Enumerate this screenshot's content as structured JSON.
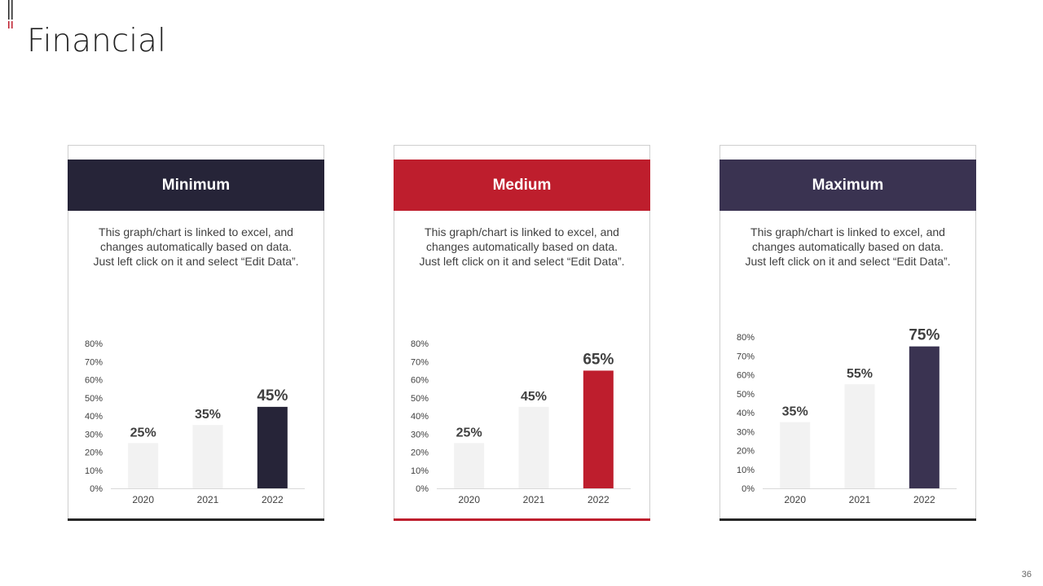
{
  "page": {
    "title": "Financial",
    "page_number": "36"
  },
  "colors": {
    "minimum": "#262438",
    "medium": "#BE1E2D",
    "maximum": "#3A3351",
    "light_bar": "#F2F2F2"
  },
  "cards": [
    {
      "header": "Minimum",
      "description": "This graph/chart is linked to excel, and changes automatically based on data. Just left click on it and select “Edit Data”."
    },
    {
      "header": "Medium",
      "description": "This graph/chart is linked to excel, and changes automatically based on data. Just left click on it and select “Edit Data”."
    },
    {
      "header": "Maximum",
      "description": "This graph/chart is linked to excel, and changes automatically based on data. Just left click on it and select “Edit Data”."
    }
  ],
  "chart_data": [
    {
      "type": "bar",
      "categories": [
        "2020",
        "2021",
        "2022"
      ],
      "values": [
        25,
        35,
        45
      ],
      "data_labels": [
        "25%",
        "35%",
        "45%"
      ],
      "ylim": [
        0,
        80
      ],
      "yticks": [
        "0%",
        "10%",
        "20%",
        "30%",
        "40%",
        "50%",
        "60%",
        "70%",
        "80%"
      ],
      "highlight_color": "#262438"
    },
    {
      "type": "bar",
      "categories": [
        "2020",
        "2021",
        "2022"
      ],
      "values": [
        25,
        45,
        65
      ],
      "data_labels": [
        "25%",
        "45%",
        "65%"
      ],
      "ylim": [
        0,
        80
      ],
      "yticks": [
        "0%",
        "10%",
        "20%",
        "30%",
        "40%",
        "50%",
        "60%",
        "70%",
        "80%"
      ],
      "highlight_color": "#BE1E2D"
    },
    {
      "type": "bar",
      "categories": [
        "2020",
        "2021",
        "2022"
      ],
      "values": [
        35,
        55,
        75
      ],
      "data_labels": [
        "35%",
        "55%",
        "75%"
      ],
      "ylim": [
        0,
        80
      ],
      "yticks": [
        "0%",
        "10%",
        "20%",
        "30%",
        "40%",
        "50%",
        "60%",
        "70%",
        "80%"
      ],
      "highlight_color": "#3A3351"
    }
  ]
}
